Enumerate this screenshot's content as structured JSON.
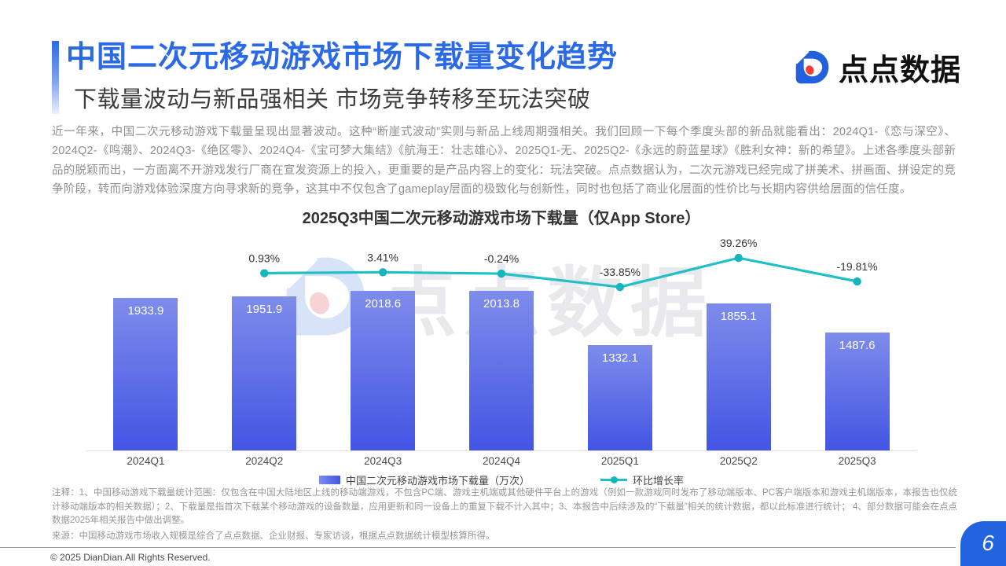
{
  "header": {
    "title": "中国二次元移动游戏市场下载量变化趋势",
    "subtitle": "下载量波动与新品强相关 市场竞争转移至玩法突破",
    "logo_text": "点点数据"
  },
  "intro": "近一年来，中国二次元移动游戏下载量呈现出显著波动。这种“断崖式波动”实则与新品上线周期强相关。我们回顾一下每个季度头部的新品就能看出：2024Q1-《恋与深空》、2024Q2-《鸣潮》、2024Q3-《绝区零》、2024Q4-《宝可梦大集结》《航海王：壮志雄心》、2025Q1-无、2025Q2-《永远的蔚蓝星球》《胜利女神：新的希望》。上述各季度头部新品的脱颖而出，一方面离不开游戏发行厂商在宣发资源上的投入，更重要的是产品内容上的变化：玩法突破。点点数据认为，二次元游戏已经完成了拼美术、拼画面、拼设定的竞争阶段，转而向游戏体验深度方向寻求新的竞争，这其中不仅包含了gameplay层面的极致化与创新性，同时也包括了商业化层面的性价比与长期内容供给层面的信任度。",
  "chart_data": {
    "type": "bar",
    "title": "2025Q3中国二次元移动游戏市场下载量（仅App Store）",
    "categories": [
      "2024Q1",
      "2024Q2",
      "2024Q3",
      "2024Q4",
      "2025Q1",
      "2025Q2",
      "2025Q3"
    ],
    "series": [
      {
        "name": "中国二次元移动游戏市场下载量（万次）",
        "type": "bar",
        "unit": "万次",
        "values": [
          1933.9,
          1951.9,
          2018.6,
          2013.8,
          1332.1,
          1855.1,
          1487.6
        ]
      },
      {
        "name": "环比增长率",
        "type": "line",
        "unit": "%",
        "values": [
          null,
          0.93,
          3.41,
          -0.24,
          -33.85,
          39.26,
          -19.81
        ]
      }
    ],
    "value_labels": true,
    "grid": false,
    "legend_position": "bottom",
    "colors": {
      "bar_top": "#7e8ceb",
      "bar_bottom": "#4355e3",
      "line": "#1fc0c8",
      "dot": "#15b5bd"
    }
  },
  "notes": {
    "annotation": "注释：1、中国移动游戏下载量统计范围：仅包含在中国大陆地区上线的移动端游戏，不包含PC端、游戏主机端或其他硬件平台上的游戏（例如一款游戏同时发布了移动端版本、PC客户端版本和游戏主机端版本，本报告也仅统计移动端版本的相关数据）；2、下载量是指首次下载某个移动游戏的设备数量，应用更新和同一设备上的重复下载不计入其中；3、本报告中后续涉及的“下载量”相关的统计数据，都以此标准进行统计； 4、部分数据可能会在点点数据2025年相关报告中做出调整。",
    "source": "来源：中国移动游戏市场收入规模是综合了点点数据、企业财报、专家访谈，根据点点数据统计模型核算所得。"
  },
  "footer": {
    "copyright": "© 2025 DianDian.All Rights Reserved.",
    "page_number": "6"
  }
}
